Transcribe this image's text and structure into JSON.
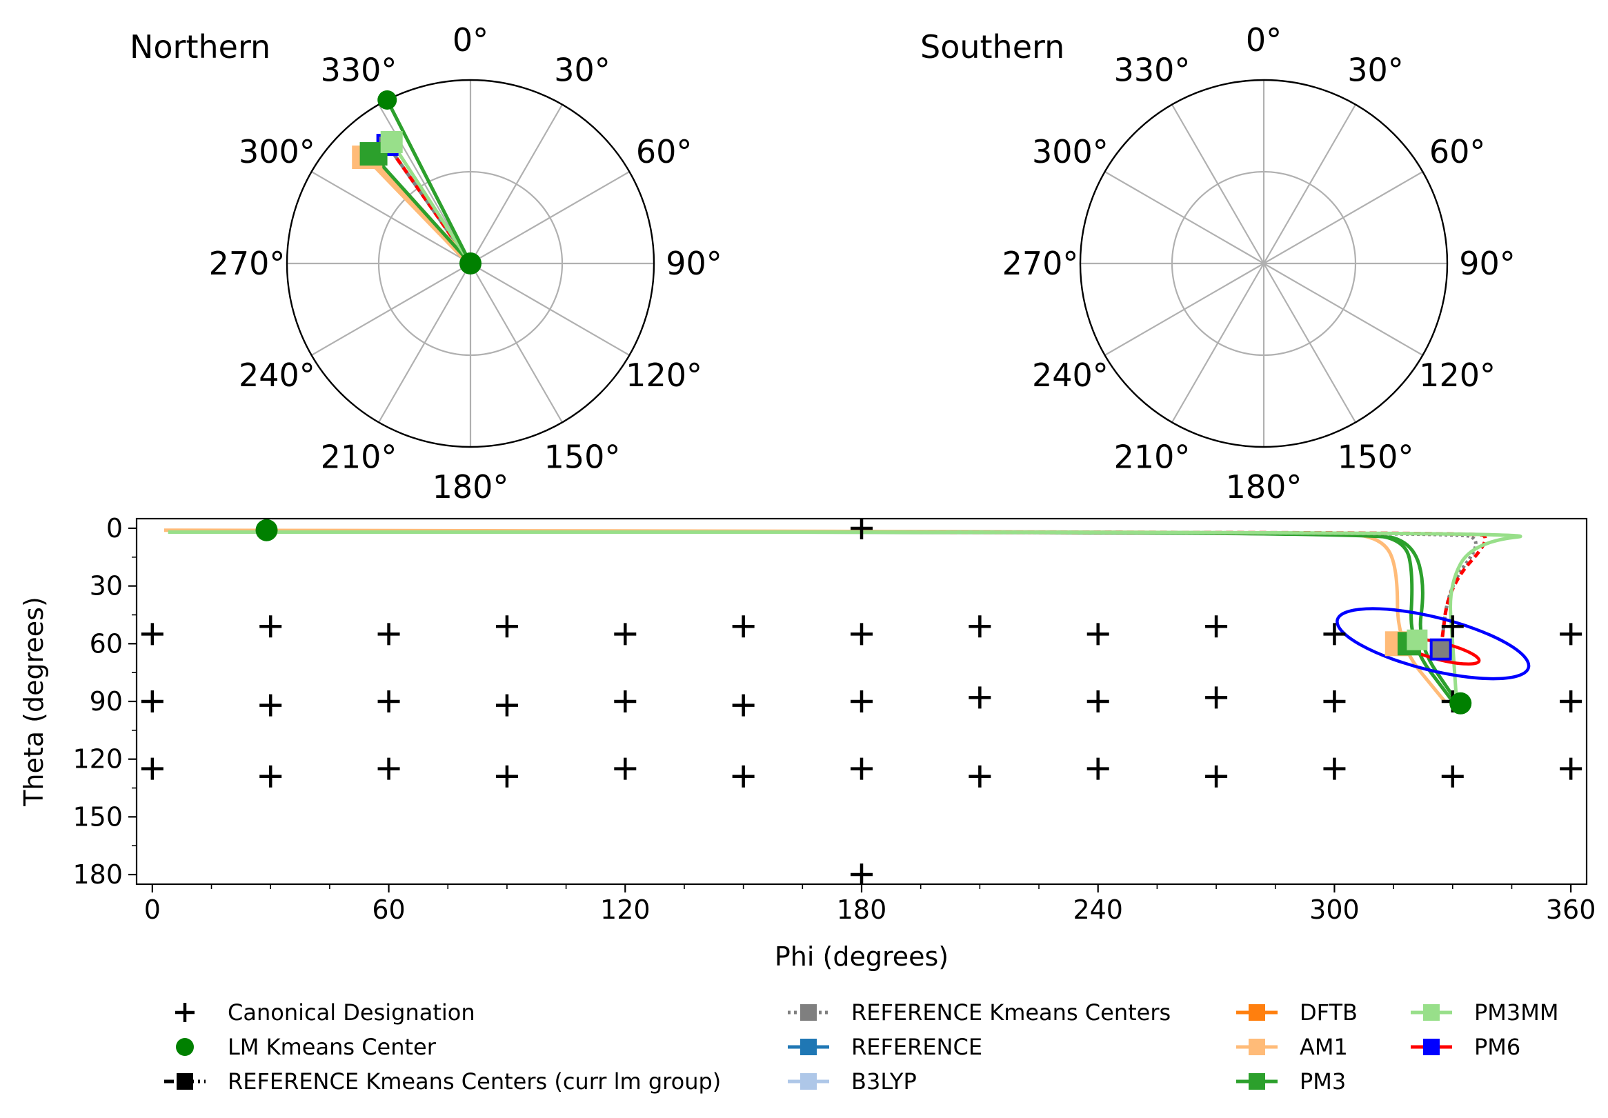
{
  "chart_data": [
    {
      "type": "scatter",
      "subtype": "polar",
      "title": "Northern",
      "angle_tick_labels": [
        "0°",
        "30°",
        "60°",
        "90°",
        "120°",
        "150°",
        "180°",
        "210°",
        "240°",
        "270°",
        "300°",
        "330°"
      ],
      "rings": [
        45,
        90
      ],
      "r_max": 90,
      "lm_kmeans_center": {
        "phi": 0,
        "theta": 0
      },
      "pathway_points": [
        {
          "name": "REFERENCE Kmeans Centers",
          "phi": 325,
          "theta": 71
        },
        {
          "name": "PM6",
          "phi": 325,
          "theta": 71
        },
        {
          "name": "AM1",
          "phi": 316,
          "theta": 71
        },
        {
          "name": "PM3",
          "phi": 318,
          "theta": 71
        },
        {
          "name": "PM3MM",
          "phi": 327,
          "theta": 71
        },
        {
          "name": "LM Kmeans Center",
          "phi": 333,
          "theta": 90
        }
      ]
    },
    {
      "type": "scatter",
      "subtype": "polar",
      "title": "Southern",
      "angle_tick_labels": [
        "0°",
        "30°",
        "60°",
        "90°",
        "120°",
        "150°",
        "180°",
        "210°",
        "240°",
        "270°",
        "300°",
        "330°"
      ],
      "rings": [
        45,
        90
      ],
      "r_max": 90
    },
    {
      "type": "scatter",
      "xlabel": "Phi (degrees)",
      "ylabel": "Theta (degrees)",
      "xlim": [
        -4,
        364
      ],
      "ylim": [
        185,
        -5
      ],
      "x_ticks": [
        0,
        60,
        120,
        180,
        240,
        300,
        360
      ],
      "y_ticks": [
        0,
        30,
        60,
        90,
        120,
        150,
        180
      ],
      "x_tick_labels": [
        "0",
        "60",
        "120",
        "180",
        "240",
        "300",
        "360"
      ],
      "y_tick_labels": [
        "0",
        "30",
        "60",
        "90",
        "120",
        "150",
        "180"
      ],
      "canonical_designation": [
        [
          180,
          0
        ],
        [
          180,
          180
        ],
        [
          0,
          55
        ],
        [
          30,
          51
        ],
        [
          60,
          55
        ],
        [
          90,
          51
        ],
        [
          120,
          55
        ],
        [
          150,
          51
        ],
        [
          180,
          55
        ],
        [
          210,
          51
        ],
        [
          240,
          55
        ],
        [
          270,
          51
        ],
        [
          300,
          55
        ],
        [
          330,
          51
        ],
        [
          360,
          55
        ],
        [
          0,
          90
        ],
        [
          30,
          92
        ],
        [
          60,
          90
        ],
        [
          90,
          92
        ],
        [
          120,
          90
        ],
        [
          150,
          92
        ],
        [
          180,
          90
        ],
        [
          210,
          88
        ],
        [
          240,
          90
        ],
        [
          270,
          88
        ],
        [
          300,
          90
        ],
        [
          330,
          90
        ],
        [
          360,
          90
        ],
        [
          0,
          125
        ],
        [
          30,
          129
        ],
        [
          60,
          125
        ],
        [
          90,
          129
        ],
        [
          120,
          125
        ],
        [
          150,
          129
        ],
        [
          180,
          125
        ],
        [
          210,
          129
        ],
        [
          240,
          125
        ],
        [
          270,
          129
        ],
        [
          300,
          125
        ],
        [
          330,
          129
        ],
        [
          360,
          125
        ]
      ],
      "lm_kmeans_centers": [
        [
          29,
          1
        ],
        [
          332,
          91
        ]
      ],
      "reference_kmeans_centers": [
        [
          327,
          63
        ]
      ],
      "method_centers": [
        {
          "name": "AM1",
          "phi": 316,
          "theta": 60
        },
        {
          "name": "PM3",
          "phi": 319,
          "theta": 60
        },
        {
          "name": "PM3MM",
          "phi": 321,
          "theta": 58
        }
      ],
      "ellipses": [
        {
          "name": "PM6",
          "color": "#0000ff",
          "cx": 325,
          "cy": 60,
          "rx": 25,
          "ry": 25,
          "rotation_deg": 14
        },
        {
          "name": "PM6",
          "color": "#ff0000",
          "cx": 327,
          "cy": 64,
          "rx": 10,
          "ry": 8,
          "rotation_deg": 14
        }
      ],
      "pathways": [
        {
          "name": "AM1",
          "color": "#ffbb78",
          "points": [
            [
              3,
              1
            ],
            [
              300,
              2
            ],
            [
              312,
              5
            ],
            [
              316,
              20
            ],
            [
              316,
              60
            ],
            [
              328,
              90
            ]
          ]
        },
        {
          "name": "PM3",
          "color": "#2ca02c",
          "points": [
            [
              5,
              2
            ],
            [
              305,
              2
            ],
            [
              318,
              6
            ],
            [
              320,
              25
            ],
            [
              319,
              60
            ],
            [
              330,
              90
            ]
          ]
        },
        {
          "name": "PM3",
          "color": "#2ca02c",
          "points": [
            [
              8,
              2
            ],
            [
              310,
              2
            ],
            [
              320,
              8
            ],
            [
              323,
              30
            ],
            [
              321,
              60
            ],
            [
              331,
              90
            ]
          ]
        },
        {
          "name": "REFERENCE Kmeans Centers",
          "color": "#7f7f7f",
          "points": [
            [
              10,
              2
            ],
            [
              330,
              2
            ],
            [
              338,
              6
            ],
            [
              329,
              30
            ],
            [
              327,
              63
            ]
          ]
        },
        {
          "name": "PM6",
          "color": "#ff0000",
          "points": [
            [
              12,
              2
            ],
            [
              335,
              2
            ],
            [
              340,
              5
            ],
            [
              329,
              30
            ],
            [
              327,
              63
            ]
          ]
        },
        {
          "name": "PM3MM",
          "color": "#98df8a",
          "points": [
            [
              4,
              2
            ],
            [
              358,
              2
            ],
            [
              335,
              7
            ],
            [
              329,
              30
            ],
            [
              330,
              60
            ],
            [
              331,
              90
            ]
          ]
        }
      ]
    }
  ],
  "legend": {
    "col1": [
      {
        "label": "Canonical Designation",
        "marker": "plus",
        "color": "#000000"
      },
      {
        "label": "LM Kmeans Center",
        "marker": "circle",
        "color": "#008000"
      },
      {
        "label": "REFERENCE Kmeans Centers (curr lm group)",
        "marker": "square-dashdot",
        "color": "#000000"
      }
    ],
    "col2": [
      {
        "label": "REFERENCE Kmeans Centers",
        "marker": "square-dotted",
        "color": "#7f7f7f"
      },
      {
        "label": "REFERENCE",
        "marker": "square-line",
        "color": "#1f77b4"
      },
      {
        "label": "B3LYP",
        "marker": "square-line",
        "color": "#aec7e8"
      }
    ],
    "col3": [
      {
        "label": "DFTB",
        "marker": "square-line",
        "color": "#ff7f0e"
      },
      {
        "label": "AM1",
        "marker": "square-line",
        "color": "#ffbb78"
      },
      {
        "label": "PM3",
        "marker": "square-line",
        "color": "#2ca02c"
      }
    ],
    "col4": [
      {
        "label": "PM3MM",
        "marker": "square-line",
        "color": "#98df8a"
      },
      {
        "label": "PM6",
        "marker": "square-line-blue",
        "color": "#ff0000",
        "edge": "#0000ff"
      }
    ]
  }
}
